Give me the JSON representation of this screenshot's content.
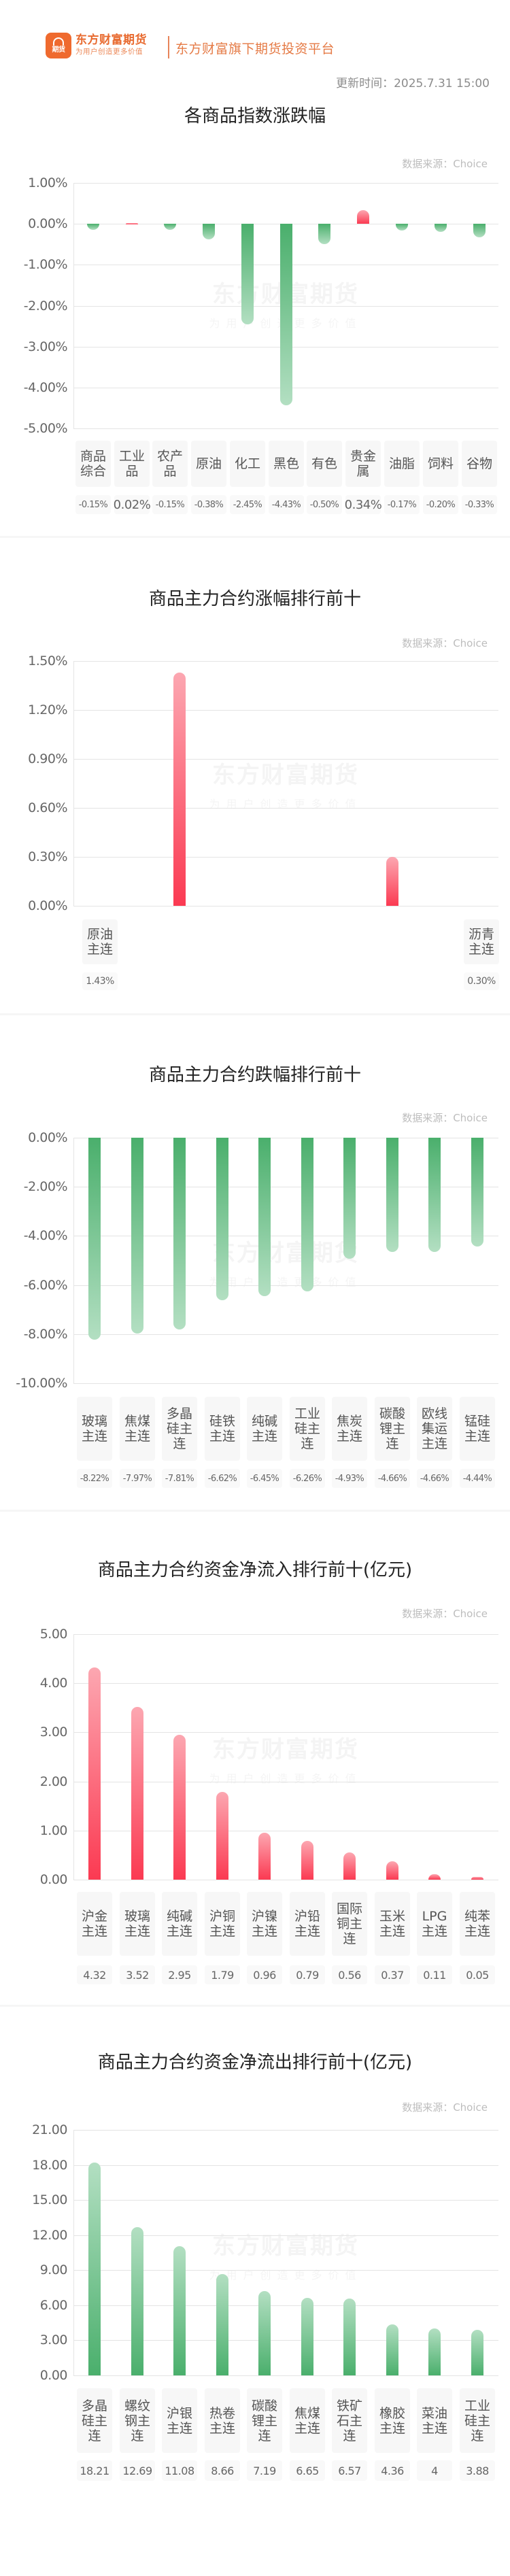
{
  "header": {
    "logo_text": "期货",
    "brand_name": "东方财富期货",
    "brand_slogan": "为用户创造更多价值",
    "brand_tagline": "东方财富旗下期货投资平台",
    "update_time": "更新时间：2025.7.31 15:00"
  },
  "watermark": {
    "line1": "东方财富期货",
    "line2": "为用户创造更多价值"
  },
  "colors": {
    "brand": "#ef6a2e",
    "up": "#fb3a52",
    "down": "#4aaf6c",
    "grid": "#e4e4e4"
  },
  "chart_data": [
    {
      "type": "bar",
      "title": "各商品指数涨跌幅",
      "source": "数据来源：Choice",
      "xlabel": "",
      "ylabel": "",
      "ylim": [
        -5.0,
        1.0
      ],
      "yticks": [
        "1.00%",
        "0.00%",
        "-1.00%",
        "-2.00%",
        "-3.00%",
        "-4.00%",
        "-5.00%"
      ],
      "grid": true,
      "categories": [
        "商品综合",
        "工业品",
        "农产品",
        "原油",
        "化工",
        "黑色",
        "有色",
        "贵金属",
        "油脂",
        "饲料",
        "谷物"
      ],
      "values": [
        -0.15,
        0.02,
        -0.15,
        -0.38,
        -2.45,
        -4.43,
        -0.5,
        0.34,
        -0.17,
        -0.2,
        -0.33
      ],
      "value_labels": [
        "-0.15%",
        "0.02%",
        "-0.15%",
        "-0.38%",
        "-2.45%",
        "-4.43%",
        "-0.50%",
        "0.34%",
        "-0.17%",
        "-0.20%",
        "-0.33%"
      ],
      "unit": "%"
    },
    {
      "type": "bar",
      "title": "商品主力合约涨幅排行前十",
      "source": "数据来源：Choice",
      "xlabel": "",
      "ylabel": "",
      "ylim": [
        0.0,
        1.5
      ],
      "yticks": [
        "1.50%",
        "1.20%",
        "0.90%",
        "0.60%",
        "0.30%",
        "0.00%"
      ],
      "grid": true,
      "categories": [
        "原油主连",
        "沥青主连"
      ],
      "values": [
        1.43,
        0.3
      ],
      "value_labels": [
        "1.43%",
        "0.30%"
      ],
      "unit": "%"
    },
    {
      "type": "bar",
      "title": "商品主力合约跌幅排行前十",
      "source": "数据来源：Choice",
      "xlabel": "",
      "ylabel": "",
      "ylim": [
        -10.0,
        0.0
      ],
      "yticks": [
        "0.00%",
        "-2.00%",
        "-4.00%",
        "-6.00%",
        "-8.00%",
        "-10.00%"
      ],
      "grid": true,
      "categories": [
        "玻璃主连",
        "焦煤主连",
        "多晶硅主连",
        "硅铁主连",
        "纯碱主连",
        "工业硅主连",
        "焦炭主连",
        "碳酸锂主连",
        "欧线集运主连",
        "锰硅主连"
      ],
      "values": [
        -8.22,
        -7.97,
        -7.81,
        -6.62,
        -6.45,
        -6.26,
        -4.93,
        -4.66,
        -4.66,
        -4.44
      ],
      "value_labels": [
        "-8.22%",
        "-7.97%",
        "-7.81%",
        "-6.62%",
        "-6.45%",
        "-6.26%",
        "-4.93%",
        "-4.66%",
        "-4.66%",
        "-4.44%"
      ],
      "unit": "%"
    },
    {
      "type": "bar",
      "title": "商品主力合约资金净流入排行前十(亿元)",
      "source": "数据来源：Choice",
      "xlabel": "",
      "ylabel": "亿元",
      "ylim": [
        0.0,
        5.0
      ],
      "yticks": [
        "5.00",
        "4.00",
        "3.00",
        "2.00",
        "1.00",
        "0.00"
      ],
      "grid": true,
      "categories": [
        "沪金主连",
        "玻璃主连",
        "纯碱主连",
        "沪铜主连",
        "沪镍主连",
        "沪铅主连",
        "国际铜主连",
        "玉米主连",
        "LPG主连",
        "纯苯主连"
      ],
      "values": [
        4.32,
        3.52,
        2.95,
        1.79,
        0.96,
        0.79,
        0.56,
        0.37,
        0.11,
        0.05
      ],
      "value_labels": [
        "4.32",
        "3.52",
        "2.95",
        "1.79",
        "0.96",
        "0.79",
        "0.56",
        "0.37",
        "0.11",
        "0.05"
      ]
    },
    {
      "type": "bar",
      "title": "商品主力合约资金净流出排行前十(亿元)",
      "source": "数据来源：Choice",
      "xlabel": "",
      "ylabel": "亿元",
      "ylim": [
        0.0,
        21.0
      ],
      "yticks": [
        "21.00",
        "18.00",
        "15.00",
        "12.00",
        "9.00",
        "6.00",
        "3.00",
        "0.00"
      ],
      "grid": true,
      "categories": [
        "多晶硅主连",
        "螺纹钢主连",
        "沪银主连",
        "热卷主连",
        "碳酸锂主连",
        "焦煤主连",
        "铁矿石主连",
        "橡胶主连",
        "菜油主连",
        "工业硅主连"
      ],
      "values": [
        18.21,
        12.69,
        11.08,
        8.66,
        7.19,
        6.65,
        6.57,
        4.36,
        4,
        3.88
      ],
      "value_labels": [
        "18.21",
        "12.69",
        "11.08",
        "8.66",
        "7.19",
        "6.65",
        "6.57",
        "4.36",
        "4",
        "3.88"
      ]
    }
  ]
}
